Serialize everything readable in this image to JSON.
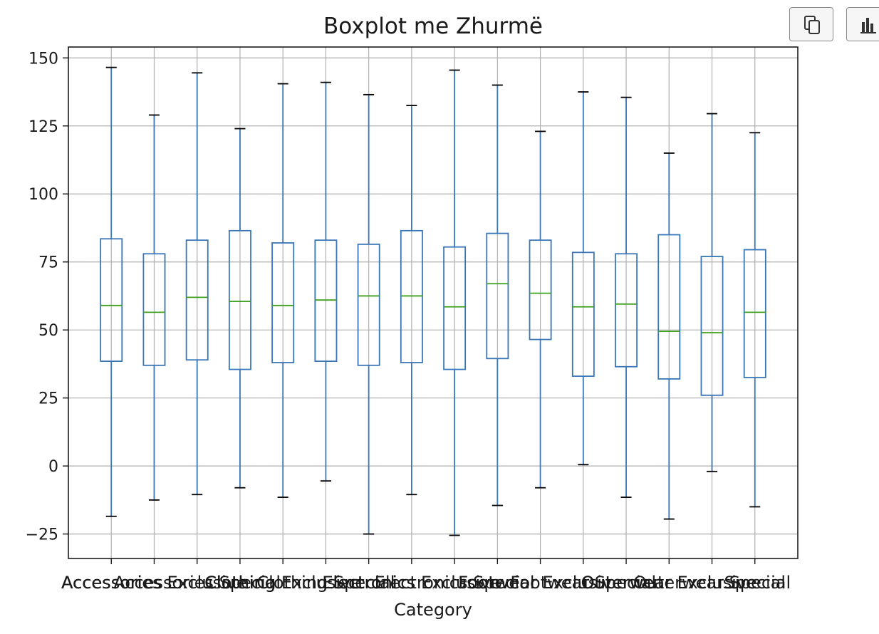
{
  "chart_data": {
    "type": "boxplot",
    "title": "Boxplot me Zhurmë",
    "xlabel": "Category",
    "ylabel": "",
    "ylim": [
      -34,
      154
    ],
    "yticks": [
      -25,
      0,
      25,
      50,
      75,
      100,
      125,
      150
    ],
    "ytick_labels": [
      "−25",
      "0",
      "25",
      "50",
      "75",
      "100",
      "125",
      "150"
    ],
    "grid": true,
    "colors": {
      "box": "#3a76b8",
      "median": "#3f9f1f",
      "cap": "#000000",
      "grid": "#b0b0b0"
    },
    "categories": [
      "Accessories",
      "Accessories Exclusive",
      "Accessories Special",
      "Clothing",
      "Clothing Exclusive",
      "Clothing Special",
      "Electronics",
      "Electronics Exclusive",
      "Electronics Special",
      "Footwear",
      "Footwear Exclusive",
      "Footwear Special",
      "Outerwear",
      "Outerwear Exclusive",
      "Outerwear Special",
      "Special"
    ],
    "boxes": [
      {
        "whislo": -18.5,
        "q1": 38.5,
        "med": 59,
        "q3": 83.5,
        "whishi": 146.5
      },
      {
        "whislo": -12.5,
        "q1": 37,
        "med": 56.5,
        "q3": 78,
        "whishi": 129
      },
      {
        "whislo": -10.5,
        "q1": 39,
        "med": 62,
        "q3": 83,
        "whishi": 144.5
      },
      {
        "whislo": -8,
        "q1": 35.5,
        "med": 60.5,
        "q3": 86.5,
        "whishi": 124
      },
      {
        "whislo": -11.5,
        "q1": 38,
        "med": 59,
        "q3": 82,
        "whishi": 140.5
      },
      {
        "whislo": -5.5,
        "q1": 38.5,
        "med": 61,
        "q3": 83,
        "whishi": 141
      },
      {
        "whislo": -25,
        "q1": 37,
        "med": 62.5,
        "q3": 81.5,
        "whishi": 136.5
      },
      {
        "whislo": -10.5,
        "q1": 38,
        "med": 62.5,
        "q3": 86.5,
        "whishi": 132.5
      },
      {
        "whislo": -25.5,
        "q1": 35.5,
        "med": 58.5,
        "q3": 80.5,
        "whishi": 145.5
      },
      {
        "whislo": -14.5,
        "q1": 39.5,
        "med": 67,
        "q3": 85.5,
        "whishi": 140
      },
      {
        "whislo": -8,
        "q1": 46.5,
        "med": 63.5,
        "q3": 83,
        "whishi": 123
      },
      {
        "whislo": 0.5,
        "q1": 33,
        "med": 58.5,
        "q3": 78.5,
        "whishi": 137.5
      },
      {
        "whislo": -11.5,
        "q1": 36.5,
        "med": 59.5,
        "q3": 78,
        "whishi": 135.5
      },
      {
        "whislo": -19.5,
        "q1": 32,
        "med": 49.5,
        "q3": 85,
        "whishi": 115
      },
      {
        "whislo": -2,
        "q1": 26,
        "med": 49,
        "q3": 77,
        "whishi": 129.5
      },
      {
        "whislo": -15,
        "q1": 32.5,
        "med": 56.5,
        "q3": 79.5,
        "whishi": 122.5
      }
    ]
  },
  "toolbar": {
    "copy_icon": "copy-icon",
    "chart_icon": "bar-chart-icon"
  }
}
